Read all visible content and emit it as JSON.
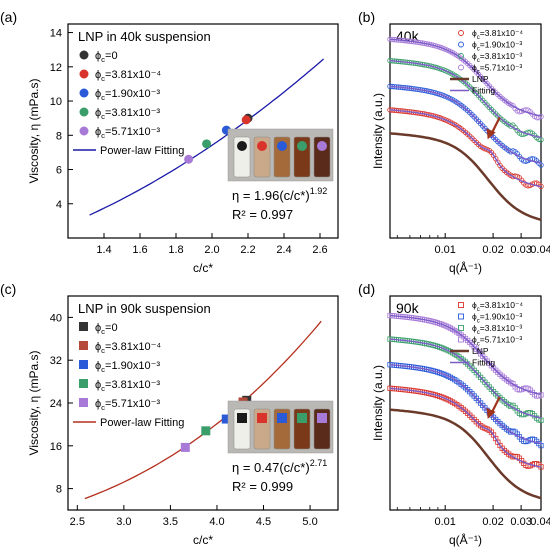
{
  "chart_data": [
    {
      "id": "a",
      "panel_label": "(a)",
      "type": "scatter",
      "title": "LNP in 40k suspension",
      "xlabel": "c/c*",
      "ylabel": "Viscosity, η (mPa.s)",
      "xlim": [
        1.2,
        2.7
      ],
      "ylim": [
        2,
        14.5
      ],
      "xticks": [
        "1.4",
        "1.6",
        "1.8",
        "2.0",
        "2.2",
        "2.4",
        "2.6"
      ],
      "yticks": [
        "4",
        "6",
        "8",
        "10",
        "12",
        "14"
      ],
      "marker": "circle",
      "series": [
        {
          "name": "ϕc=0",
          "color": "#333333",
          "x": [
            2.2
          ],
          "y": [
            9.0
          ]
        },
        {
          "name": "ϕc=3.81x10⁻⁴",
          "color": "#d9342b",
          "x": [
            2.19
          ],
          "y": [
            8.9
          ]
        },
        {
          "name": "ϕc=1.90x10⁻³",
          "color": "#2a5ad8",
          "x": [
            2.08
          ],
          "y": [
            8.3
          ]
        },
        {
          "name": "ϕc=3.81x10⁻³",
          "color": "#3a9e6a",
          "x": [
            1.97
          ],
          "y": [
            7.5
          ]
        },
        {
          "name": "ϕc=5.71x10⁻³",
          "color": "#a77ad8",
          "x": [
            1.87
          ],
          "y": [
            6.6
          ]
        }
      ],
      "fit": {
        "name": "Power-law Fitting",
        "color": "#1a1aa8",
        "a": 1.96,
        "b": 1.92,
        "x_range": [
          1.32,
          2.62
        ]
      },
      "equation": "η = 1.96(c/c*)",
      "exponent": "1.92",
      "r2": "R² = 0.997",
      "vial_colors": [
        "#1a1a1a",
        "#d9342b",
        "#2a5ad8",
        "#3a9e6a",
        "#a77ad8"
      ]
    },
    {
      "id": "b",
      "panel_label": "(b)",
      "type": "line",
      "title": "40k",
      "xlabel": "q(Å⁻¹)",
      "ylabel": "Intensity (a.u.)",
      "log_x": true,
      "xlim": [
        0.0045,
        0.04
      ],
      "xticks": [
        "0.01",
        "0.02",
        "0.03",
        "0.04"
      ],
      "series": [
        {
          "name": "ϕc=3.81x10⁻⁴",
          "color": "#d9342b",
          "marker": "circle"
        },
        {
          "name": "ϕc=1.90x10⁻³",
          "color": "#2a5ad8",
          "marker": "circle"
        },
        {
          "name": "ϕc=3.81x10⁻³",
          "color": "#3a9e6a",
          "marker": "circle"
        },
        {
          "name": "ϕc=5.71x10⁻³",
          "color": "#a77ad8",
          "marker": "circle"
        },
        {
          "name": "LNP",
          "color": "#6b3a2a",
          "marker": "line"
        },
        {
          "name": "Fitting",
          "color": "#7b5cc8",
          "marker": "line"
        }
      ]
    },
    {
      "id": "c",
      "panel_label": "(c)",
      "type": "scatter",
      "title": "LNP in 90k suspension",
      "xlabel": "c/c*",
      "ylabel": "Viscosity, η (mPa.s)",
      "xlim": [
        2.4,
        5.3
      ],
      "ylim": [
        4,
        44
      ],
      "xticks": [
        "2.5",
        "3.0",
        "3.5",
        "4.0",
        "4.5",
        "5.0"
      ],
      "yticks": [
        "8",
        "16",
        "24",
        "32",
        "40"
      ],
      "marker": "square",
      "series": [
        {
          "name": "ϕc=0",
          "color": "#333333",
          "x": [
            4.32
          ],
          "y": [
            24.5
          ]
        },
        {
          "name": "ϕc=3.81x10⁻⁴",
          "color": "#b54a3a",
          "x": [
            4.28
          ],
          "y": [
            24.2
          ]
        },
        {
          "name": "ϕc=1.90x10⁻³",
          "color": "#2a5ad8",
          "x": [
            4.1
          ],
          "y": [
            21.0
          ]
        },
        {
          "name": "ϕc=3.81x10⁻³",
          "color": "#3a9e6a",
          "x": [
            3.88
          ],
          "y": [
            18.8
          ]
        },
        {
          "name": "ϕc=5.71x10⁻³",
          "color": "#a77ad8",
          "x": [
            3.66
          ],
          "y": [
            15.7
          ]
        }
      ],
      "fit": {
        "name": "Power-law Fitting",
        "color": "#b5301e",
        "a": 0.47,
        "b": 2.71,
        "x_range": [
          2.58,
          5.12
        ]
      },
      "equation": "η = 0.47(c/c*)",
      "exponent": "2.71",
      "r2": "R² = 0.999",
      "vial_colors": [
        "#1a1a1a",
        "#d9342b",
        "#2a5ad8",
        "#3a9e6a",
        "#a77ad8"
      ]
    },
    {
      "id": "d",
      "panel_label": "(d)",
      "type": "line",
      "title": "90k",
      "xlabel": "q(Å⁻¹)",
      "ylabel": "Intensity (a.u.)",
      "log_x": true,
      "xlim": [
        0.0045,
        0.04
      ],
      "xticks": [
        "0.01",
        "0.02",
        "0.03",
        "0.04"
      ],
      "series": [
        {
          "name": "ϕc=3.81x10⁻⁴",
          "color": "#d9342b",
          "marker": "square"
        },
        {
          "name": "ϕc=1.90x10⁻³",
          "color": "#2a5ad8",
          "marker": "square"
        },
        {
          "name": "ϕc=3.81x10⁻³",
          "color": "#3a9e6a",
          "marker": "square"
        },
        {
          "name": "ϕc=5.71x10⁻³",
          "color": "#a77ad8",
          "marker": "square"
        },
        {
          "name": "LNP",
          "color": "#6b3a2a",
          "marker": "line"
        },
        {
          "name": "Fitting",
          "color": "#7b5cc8",
          "marker": "line"
        }
      ]
    }
  ]
}
